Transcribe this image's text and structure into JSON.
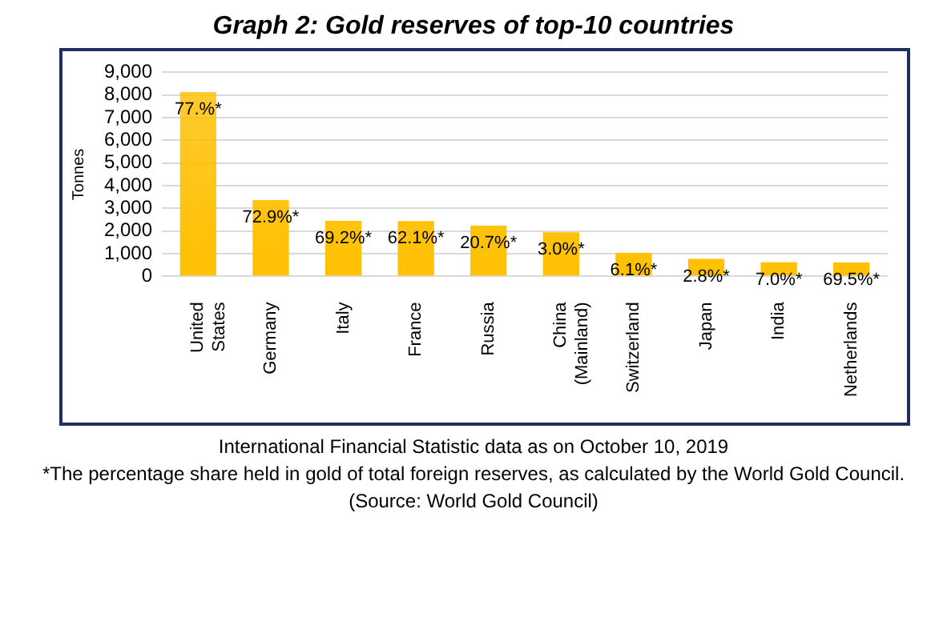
{
  "chart_data": {
    "type": "bar",
    "title": "Graph 2: Gold reserves of top-10 countries",
    "ylabel": "Tonnes",
    "categories": [
      "United States",
      "Germany",
      "Italy",
      "France",
      "Russia",
      "China (Mainland)",
      "Switzerland",
      "Japan",
      "India",
      "Netherlands"
    ],
    "values": [
      8130,
      3370,
      2450,
      2440,
      2240,
      1950,
      1040,
      770,
      620,
      610
    ],
    "color": "#ffc000",
    "ylim": [
      0,
      9000
    ],
    "yticks": [
      0,
      {
        "value": 1000,
        "label": "1,000"
      },
      {
        "value": 2000,
        "label": "2,000"
      },
      {
        "value": 3000,
        "label": "3,000"
      },
      {
        "value": 4000,
        "label": "4,000"
      },
      {
        "value": 5000,
        "label": "5,000"
      },
      {
        "value": 6000,
        "label": "6,000"
      },
      {
        "value": 7000,
        "label": "7,000"
      },
      {
        "value": 8000,
        "label": "8,000"
      },
      {
        "value": 9000,
        "label": "9,000"
      }
    ],
    "grid": "y",
    "annotations": [
      {
        "text": "77.%*",
        "x": "United States",
        "y": 8130
      },
      {
        "text": "72.9%*",
        "x": "Germany",
        "y": 3370
      },
      {
        "text": "69.2%*",
        "x": "Italy",
        "y": 2450
      },
      {
        "text": "62.1%*",
        "x": "France",
        "y": 2440
      },
      {
        "text": "20.7%*",
        "x": "Russia",
        "y": 2240
      },
      {
        "text": "3.0%*",
        "x": "China (Mainland)",
        "y": 1950
      },
      {
        "text": "6.1%*",
        "x": "Switzerland",
        "y": 1040
      },
      {
        "text": "2.8%*",
        "x": "Japan",
        "y": 770
      },
      {
        "text": "7.0%*",
        "x": "India",
        "y": 620
      },
      {
        "text": "69.5%*",
        "x": "Netherlands",
        "y": 610
      },
      "International Financial Statistic data as on October 10, 2019",
      "*The percentage share held in gold of total foreign reserves, as calculated by the World Gold Council.",
      "(Source: World Gold Council)"
    ]
  }
}
